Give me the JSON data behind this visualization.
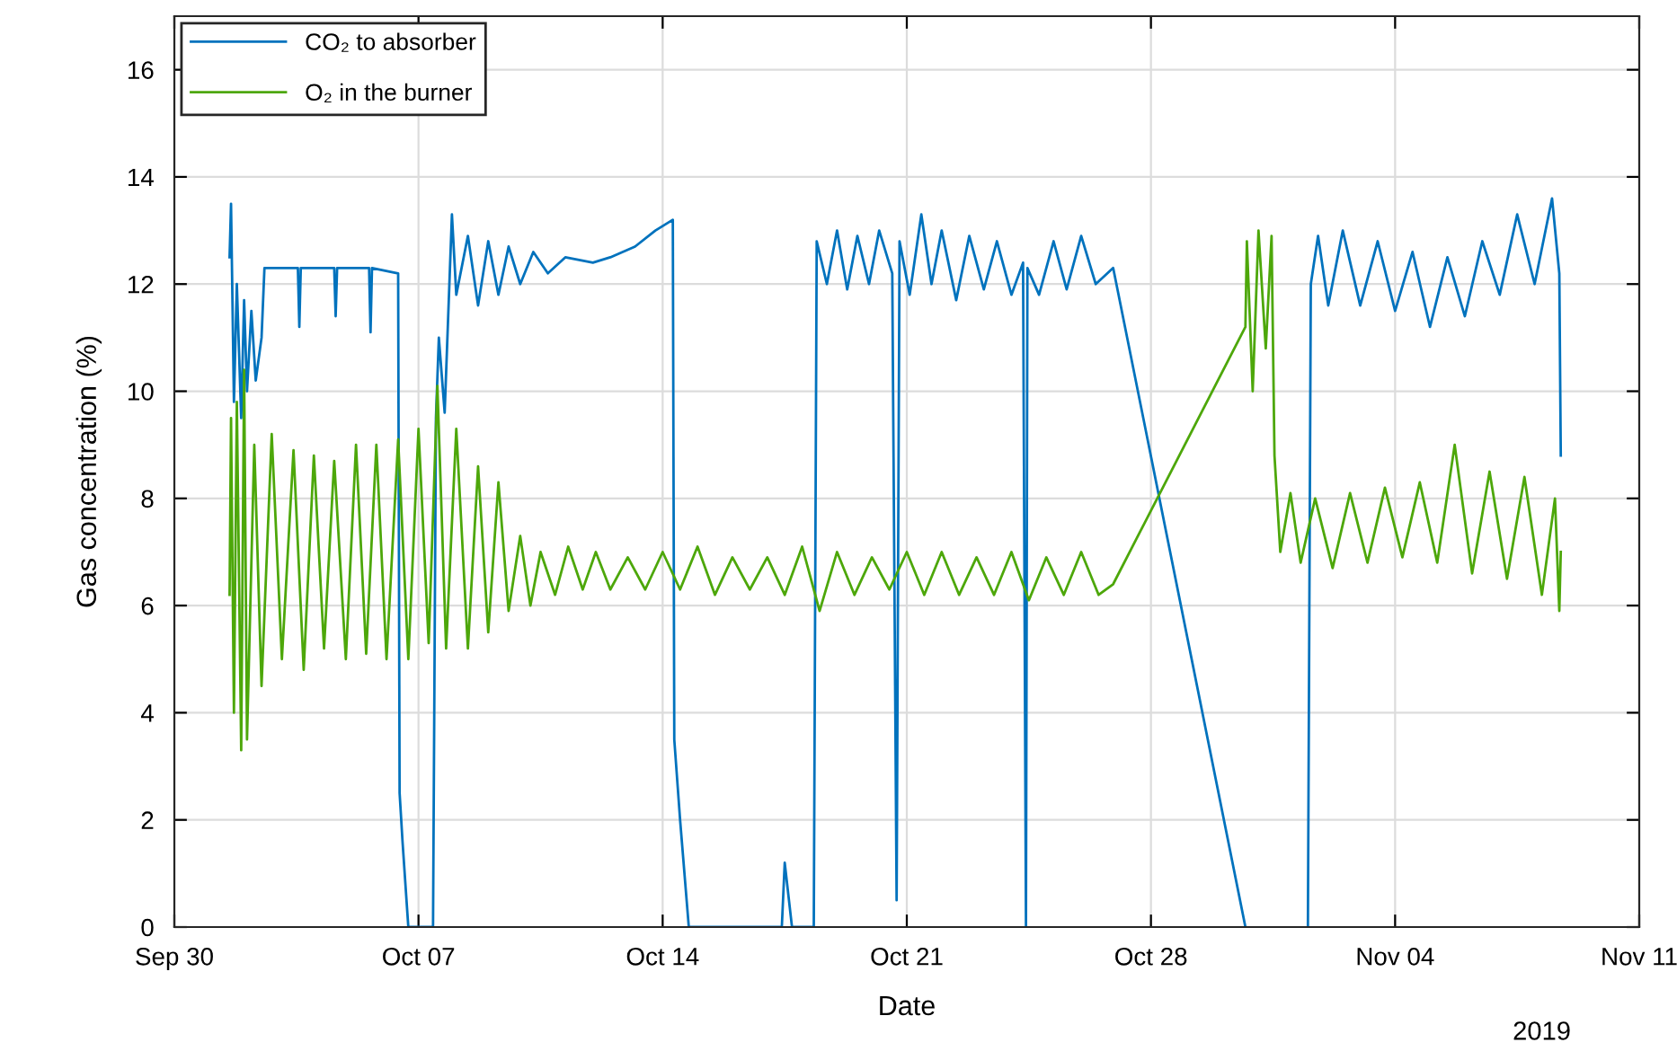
{
  "chart_data": {
    "type": "line",
    "xlabel": "Date",
    "ylabel": "Gas concentration (%)",
    "xlim": [
      "2019-09-30",
      "2019-11-11"
    ],
    "xticks": [
      {
        "value": "2019-09-30",
        "label": "Sep 30"
      },
      {
        "value": "2019-10-07",
        "label": "Oct 07"
      },
      {
        "value": "2019-10-14",
        "label": "Oct 14"
      },
      {
        "value": "2019-10-21",
        "label": "Oct 21"
      },
      {
        "value": "2019-10-28",
        "label": "Oct 28"
      },
      {
        "value": "2019-11-04",
        "label": "Nov 04"
      },
      {
        "value": "2019-11-11",
        "label": "Nov 11"
      }
    ],
    "ylim": [
      0,
      17
    ],
    "yticks": [
      0,
      2,
      4,
      6,
      8,
      10,
      12,
      14,
      16
    ],
    "grid": true,
    "legend": "top left",
    "marker": "none",
    "line_style": "solid",
    "annotations": [
      "2019"
    ],
    "series": [
      {
        "name": "CO₂ to absorber",
        "color": "#0072bd",
        "x": [
          "2019-10-01T14:00",
          "2019-10-01T15:00",
          "2019-10-01T17:00",
          "2019-10-01T19:00",
          "2019-10-01T22:00",
          "2019-10-02T00:00",
          "2019-10-02T02:00",
          "2019-10-02T05:00",
          "2019-10-02T08:00",
          "2019-10-02T12:00",
          "2019-10-02T14:00",
          "2019-10-03T13:00",
          "2019-10-03T14:00",
          "2019-10-03T15:00",
          "2019-10-04T14:00",
          "2019-10-04T15:00",
          "2019-10-04T16:00",
          "2019-10-05T14:00",
          "2019-10-05T15:00",
          "2019-10-05T16:00",
          "2019-10-06T10:00",
          "2019-10-06T11:00",
          "2019-10-06T13:00",
          "2019-10-06T17:00",
          "2019-10-07T10:00",
          "2019-10-07T12:00",
          "2019-10-07T14:00",
          "2019-10-07T18:00",
          "2019-10-07T23:00",
          "2019-10-08T02:00",
          "2019-10-08T10:00",
          "2019-10-08T17:00",
          "2019-10-09T00:00",
          "2019-10-09T07:00",
          "2019-10-09T14:00",
          "2019-10-09T22:00",
          "2019-10-10T07:00",
          "2019-10-10T17:00",
          "2019-10-11T05:00",
          "2019-10-12T00:00",
          "2019-10-12T12:00",
          "2019-10-13T05:00",
          "2019-10-13T19:00",
          "2019-10-14T07:00",
          "2019-10-14T08:00",
          "2019-10-14T12:00",
          "2019-10-14T18:00",
          "2019-10-17T10:00",
          "2019-10-17T12:00",
          "2019-10-17T17:00",
          "2019-10-18T08:00",
          "2019-10-18T10:00",
          "2019-10-18T17:00",
          "2019-10-19T00:00",
          "2019-10-19T07:00",
          "2019-10-19T14:00",
          "2019-10-19T22:00",
          "2019-10-20T05:00",
          "2019-10-20T14:00",
          "2019-10-20T17:00",
          "2019-10-20T19:00",
          "2019-10-21T02:00",
          "2019-10-21T10:00",
          "2019-10-21T17:00",
          "2019-10-22T00:00",
          "2019-10-22T10:00",
          "2019-10-22T19:00",
          "2019-10-23T05:00",
          "2019-10-23T14:00",
          "2019-10-24T00:00",
          "2019-10-24T08:00",
          "2019-10-24T10:00",
          "2019-10-24T11:00",
          "2019-10-24T19:00",
          "2019-10-25T05:00",
          "2019-10-25T14:00",
          "2019-10-26T00:00",
          "2019-10-26T10:00",
          "2019-10-26T22:00",
          "2019-10-30T17:00",
          "2019-10-31T12:00",
          "2019-11-01T12:00",
          "2019-11-01T14:00",
          "2019-11-01T19:00",
          "2019-11-02T02:00",
          "2019-11-02T12:00",
          "2019-11-03T00:00",
          "2019-11-03T12:00",
          "2019-11-04T00:00",
          "2019-11-04T12:00",
          "2019-11-05T00:00",
          "2019-11-05T12:00",
          "2019-11-06T00:00",
          "2019-11-06T12:00",
          "2019-11-07T00:00",
          "2019-11-07T12:00",
          "2019-11-08T00:00",
          "2019-11-08T12:00",
          "2019-11-08T17:00",
          "2019-11-08T18:00"
        ],
        "values": [
          12.5,
          13.5,
          9.8,
          12.0,
          9.5,
          11.7,
          10.0,
          11.5,
          10.2,
          11.0,
          12.3,
          12.3,
          11.2,
          12.3,
          12.3,
          11.4,
          12.3,
          12.3,
          11.1,
          12.3,
          12.2,
          2.5,
          1.6,
          0,
          0,
          9.5,
          11.0,
          9.6,
          13.3,
          11.8,
          12.9,
          11.6,
          12.8,
          11.8,
          12.7,
          12.0,
          12.6,
          12.2,
          12.5,
          12.4,
          12.5,
          12.7,
          13.0,
          13.2,
          3.5,
          2.0,
          0,
          0,
          1.2,
          0,
          0,
          12.8,
          12.0,
          13.0,
          11.9,
          12.9,
          12.0,
          13.0,
          12.2,
          0.5,
          12.8,
          11.8,
          13.3,
          12.0,
          13.0,
          11.7,
          12.9,
          11.9,
          12.8,
          11.8,
          12.4,
          0,
          12.3,
          11.8,
          12.8,
          11.9,
          12.9,
          12.0,
          12.3,
          0,
          null,
          0,
          12.0,
          12.9,
          11.6,
          13.0,
          11.6,
          12.8,
          11.5,
          12.6,
          11.2,
          12.5,
          11.4,
          12.8,
          11.8,
          13.3,
          12.0,
          13.6,
          12.2,
          8.8
        ]
      },
      {
        "name": "O₂ in the burner",
        "color": "#4da70a",
        "x": [
          "2019-10-01T14:00",
          "2019-10-01T15:00",
          "2019-10-01T17:00",
          "2019-10-01T19:00",
          "2019-10-01T22:00",
          "2019-10-02T00:00",
          "2019-10-02T02:00",
          "2019-10-02T07:00",
          "2019-10-02T12:00",
          "2019-10-02T19:00",
          "2019-10-03T02:00",
          "2019-10-03T10:00",
          "2019-10-03T17:00",
          "2019-10-04T00:00",
          "2019-10-04T07:00",
          "2019-10-04T14:00",
          "2019-10-04T22:00",
          "2019-10-05T05:00",
          "2019-10-05T12:00",
          "2019-10-05T19:00",
          "2019-10-06T02:00",
          "2019-10-06T10:00",
          "2019-10-06T17:00",
          "2019-10-07T00:00",
          "2019-10-07T07:00",
          "2019-10-07T13:00",
          "2019-10-07T19:00",
          "2019-10-08T02:00",
          "2019-10-08T10:00",
          "2019-10-08T17:00",
          "2019-10-09T00:00",
          "2019-10-09T07:00",
          "2019-10-09T14:00",
          "2019-10-09T22:00",
          "2019-10-10T05:00",
          "2019-10-10T12:00",
          "2019-10-10T22:00",
          "2019-10-11T07:00",
          "2019-10-11T17:00",
          "2019-10-12T02:00",
          "2019-10-12T12:00",
          "2019-10-13T00:00",
          "2019-10-13T12:00",
          "2019-10-14T00:00",
          "2019-10-14T12:00",
          "2019-10-15T00:00",
          "2019-10-15T12:00",
          "2019-10-16T00:00",
          "2019-10-16T12:00",
          "2019-10-17T00:00",
          "2019-10-17T12:00",
          "2019-10-18T00:00",
          "2019-10-18T12:00",
          "2019-10-19T00:00",
          "2019-10-19T12:00",
          "2019-10-20T00:00",
          "2019-10-20T12:00",
          "2019-10-21T00:00",
          "2019-10-21T12:00",
          "2019-10-22T00:00",
          "2019-10-22T12:00",
          "2019-10-23T00:00",
          "2019-10-23T12:00",
          "2019-10-24T00:00",
          "2019-10-24T12:00",
          "2019-10-25T00:00",
          "2019-10-25T12:00",
          "2019-10-26T00:00",
          "2019-10-26T12:00",
          "2019-10-26T22:00",
          "2019-10-30T17:00",
          "2019-10-30T18:00",
          "2019-10-30T22:00",
          "2019-10-31T02:00",
          "2019-10-31T07:00",
          "2019-10-31T11:00",
          "2019-10-31T13:00",
          "2019-10-31T17:00",
          "2019-11-01T00:00",
          "2019-11-01T07:00",
          "2019-11-01T17:00",
          "2019-11-02T05:00",
          "2019-11-02T17:00",
          "2019-11-03T05:00",
          "2019-11-03T17:00",
          "2019-11-04T05:00",
          "2019-11-04T17:00",
          "2019-11-05T05:00",
          "2019-11-05T17:00",
          "2019-11-06T05:00",
          "2019-11-06T17:00",
          "2019-11-07T05:00",
          "2019-11-07T17:00",
          "2019-11-08T05:00",
          "2019-11-08T14:00",
          "2019-11-08T17:00",
          "2019-11-08T18:00"
        ],
        "values": [
          6.2,
          9.5,
          4.0,
          9.8,
          3.3,
          10.4,
          3.5,
          9.0,
          4.5,
          9.2,
          5.0,
          8.9,
          4.8,
          8.8,
          5.2,
          8.7,
          5.0,
          9.0,
          5.1,
          9.0,
          5.0,
          9.1,
          5.0,
          9.3,
          5.3,
          10.1,
          5.2,
          9.3,
          5.2,
          8.6,
          5.5,
          8.3,
          5.9,
          7.3,
          6.0,
          7.0,
          6.2,
          7.1,
          6.3,
          7.0,
          6.3,
          6.9,
          6.3,
          7.0,
          6.3,
          7.1,
          6.2,
          6.9,
          6.3,
          6.9,
          6.2,
          7.1,
          5.9,
          7.0,
          6.2,
          6.9,
          6.3,
          7.0,
          6.2,
          7.0,
          6.2,
          6.9,
          6.2,
          7.0,
          6.1,
          6.9,
          6.2,
          7.0,
          6.2,
          6.4,
          11.2,
          12.8,
          10.0,
          13.0,
          10.8,
          12.9,
          8.8,
          7.0,
          8.1,
          6.8,
          8.0,
          6.7,
          8.1,
          6.8,
          8.2,
          6.9,
          8.3,
          6.8,
          9.0,
          6.6,
          8.5,
          6.5,
          8.4,
          6.2,
          8.0,
          5.9,
          7.0
        ]
      }
    ]
  }
}
